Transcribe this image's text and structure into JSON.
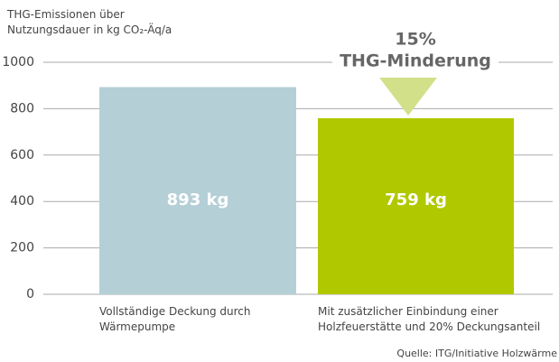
{
  "chart_data": {
    "type": "bar",
    "y_axis_label": "THG-Emissionen über\nNutzungsdauer in kg CO₂-Äq/a",
    "categories": [
      "Vollständige Deckung durch\nWärmepumpe",
      "Mit zusätzlicher Einbindung einer\nHolzfeuerstätte und 20% Deckungsanteil"
    ],
    "values": [
      893,
      759
    ],
    "value_labels": [
      "893 kg",
      "759 kg"
    ],
    "colors": [
      "#b5cfd7",
      "#b0c800"
    ],
    "ylim": [
      0,
      1000
    ],
    "yticks": [
      0,
      200,
      400,
      600,
      800,
      1000
    ],
    "grid": true,
    "annotations": [
      "15%",
      "THG-Minderung"
    ],
    "source": "Quelle: ITG/Initiative Holzwärme"
  }
}
